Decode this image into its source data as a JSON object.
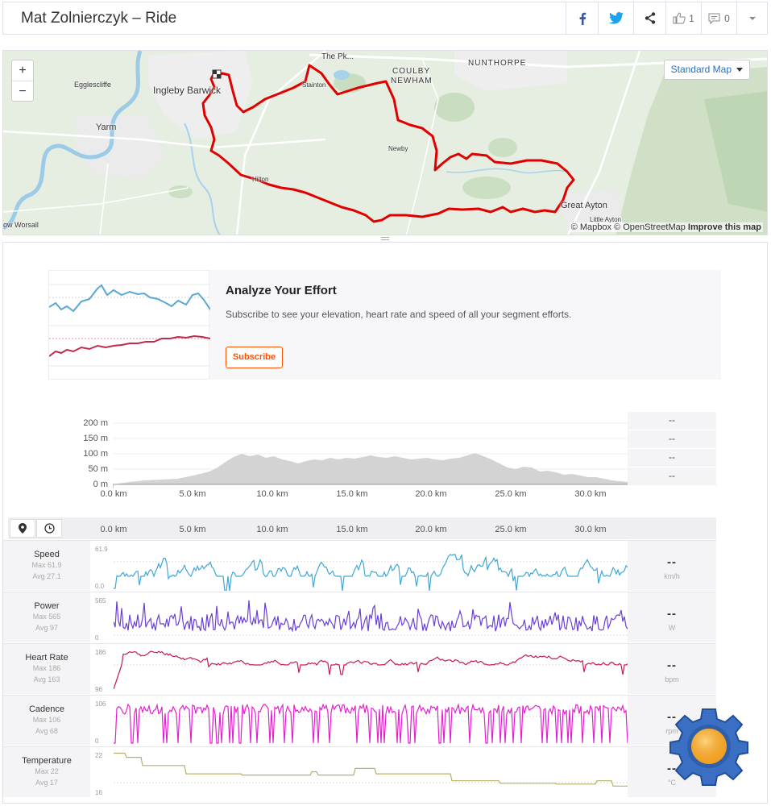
{
  "header": {
    "title": "Mat Zolnierczyk – Ride",
    "kudos_count": "1",
    "comment_count": "0",
    "icons": [
      "facebook-icon",
      "twitter-icon",
      "share-icon",
      "thumbs-up-icon",
      "comment-icon",
      "chevron-down-icon"
    ]
  },
  "map": {
    "zoom_in": "+",
    "zoom_out": "−",
    "style_select": "Standard Map",
    "attribution_mapbox": "© Mapbox",
    "attribution_osm": "© OpenStreetMap",
    "improve_link": "Improve this map",
    "labels": {
      "nunthorpe": "NUNTHORPE",
      "coulby": "COULBY",
      "newham": "NEWHAM",
      "the_pk": "The Pk...",
      "egglescliffe": "Egglescliffe",
      "ingleby": "Ingleby Barwick",
      "stainton": "Stainton",
      "yarm": "Yarm",
      "newby": "Newby",
      "hilton": "Hilton",
      "great_ayton": "Great Ayton",
      "little_ayton": "Little Ayton",
      "low_worsall": "ow Worsall"
    },
    "colors": {
      "route": "#e00000",
      "water": "#a9d3ef",
      "land": "#e4ecdf",
      "green": "#c7ddc0"
    }
  },
  "upsell": {
    "title": "Analyze Your Effort",
    "body": "Subscribe to see your elevation, heart rate and speed of all your segment efforts.",
    "button": "Subscribe"
  },
  "elevation": {
    "y_ticks": [
      "200 m",
      "150 m",
      "100 m",
      "50 m",
      "0 m"
    ],
    "x_ticks": [
      "0.0 km",
      "5.0 km",
      "10.0 km",
      "15.0 km",
      "20.0 km",
      "25.0 km",
      "30.0 km"
    ],
    "side_values": [
      "--",
      "--",
      "--",
      "--"
    ]
  },
  "streams_axis": [
    "0.0 km",
    "5.0 km",
    "10.0 km",
    "15.0 km",
    "20.0 km",
    "25.0 km",
    "30.0 km"
  ],
  "streams": [
    {
      "name": "Speed",
      "max": "Max 61.9",
      "avg": "Avg 27.1",
      "top": "61.9",
      "bottom": "0.0",
      "value": "--",
      "unit": "km/h",
      "color": "#3fa7d6"
    },
    {
      "name": "Power",
      "max": "Max 565",
      "avg": "Avg 97",
      "top": "565",
      "bottom": "0",
      "value": "--",
      "unit": "W",
      "color": "#6a3fd6"
    },
    {
      "name": "Heart Rate",
      "max": "Max 186",
      "avg": "Avg 163",
      "top": "186",
      "bottom": "96",
      "value": "--",
      "unit": "bpm",
      "color": "#c8185a"
    },
    {
      "name": "Cadence",
      "max": "Max 106",
      "avg": "Avg 68",
      "top": "106",
      "bottom": "0",
      "value": "--",
      "unit": "rpm",
      "color": "#e61ed2"
    },
    {
      "name": "Temperature",
      "max": "Max 22",
      "avg": "Avg 17",
      "top": "22",
      "bottom": "16",
      "value": "--",
      "unit": "°C",
      "color": "#b8b06a"
    }
  ]
}
